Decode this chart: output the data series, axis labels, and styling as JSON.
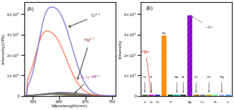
{
  "panel_A": {
    "title": "(A)",
    "xlabel": "Wavelength(nm)",
    "ylabel": "Intensity(CPS)",
    "xlim": [
      500,
      760
    ],
    "ylim": [
      0,
      460000.0
    ],
    "yticks": [
      0,
      100000.0,
      200000.0,
      300000.0,
      400000.0
    ],
    "xticks": [
      525,
      600,
      675,
      750
    ],
    "cr_color": "#6666cc",
    "hg_color": "#ff6644",
    "cr_label": "Cr$^{3+}$",
    "hg_label": "Hg$^{2+}$",
    "baseline_label": "L$_1$, L$_1$ +M$^{n+}$"
  },
  "panel_B": {
    "title": "(B)",
    "ylabel": "Intensity",
    "ylim": [
      0,
      460000.0
    ],
    "yticks": [
      0,
      100000.0,
      200000.0,
      300000.0,
      400000.0
    ],
    "cr_label": "→Cr",
    "hg_label": "Hg←",
    "bars": [
      {
        "bottom": "Li",
        "top": "Fe",
        "value": 6000,
        "color": "#3a6b3a",
        "ecolor": "#3a6b3a"
      },
      {
        "bottom": "Cs",
        "top": "Sr",
        "value": 5000,
        "color": "#cc00cc",
        "ecolor": "#cc00cc"
      },
      {
        "bottom": "Co",
        "top": "",
        "value": 4000,
        "color": "#2222bb",
        "ecolor": "#2222bb"
      },
      {
        "bottom": "",
        "top": "Ba",
        "value": 295000.0,
        "color": "#ff8800",
        "ecolor": "#ff8800"
      },
      {
        "bottom": "K",
        "top": "",
        "value": 5500,
        "color": "#004400",
        "ecolor": "#004400"
      },
      {
        "bottom": "",
        "top": "Na",
        "value": 5000,
        "color": "#009999",
        "ecolor": "#009999"
      },
      {
        "bottom": "",
        "top": "Ni",
        "value": 4500,
        "color": "#222222",
        "ecolor": "#222222"
      },
      {
        "bottom": "Ag",
        "top": "",
        "value": 395000.0,
        "color": "#8800cc",
        "ecolor": "#8800cc"
      },
      {
        "bottom": "",
        "top": "Ca",
        "value": 5000,
        "color": "#996600",
        "ecolor": "#996600"
      },
      {
        "bottom": "Cu",
        "top": "",
        "value": 4500,
        "color": "#777777",
        "ecolor": "#777777"
      },
      {
        "bottom": "",
        "top": "Cd",
        "value": 6000,
        "color": "#aaaa00",
        "ecolor": "#aaaa00"
      },
      {
        "bottom": "Zn",
        "top": "",
        "value": 7000,
        "color": "#55ff99",
        "ecolor": "#55ff99"
      },
      {
        "bottom": "",
        "top": "Mg",
        "value": 5000,
        "color": "#9999ff",
        "ecolor": "#9999ff"
      },
      {
        "bottom": "Li",
        "top": "",
        "value": 4000,
        "color": "#3399ff",
        "ecolor": "#3399ff"
      }
    ]
  }
}
